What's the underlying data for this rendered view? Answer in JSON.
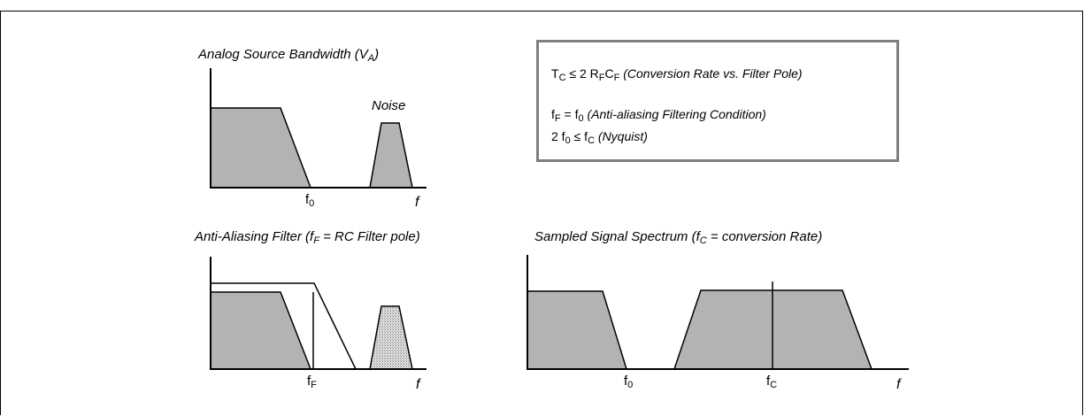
{
  "panel_top_left": {
    "title_prefix": "Analog Source Bandwidth (V",
    "title_sub": "A",
    "title_suffix": ")",
    "noise_label": "Noise",
    "f0_main": "f",
    "f0_sub": "0",
    "axis_f": "f"
  },
  "panel_bottom_left": {
    "title_prefix": "Anti-Aliasing Filter (f",
    "title_sub": "F",
    "title_suffix": " = RC Filter pole)",
    "fF_main": "f",
    "fF_sub": "F",
    "axis_f": "f"
  },
  "panel_bottom_right": {
    "title_prefix": "Sampled Signal Spectrum (f",
    "title_sub": "C",
    "title_suffix": " = conversion Rate)",
    "f0_main": "f",
    "f0_sub": "0",
    "fC_main": "f",
    "fC_sub": "C",
    "axis_f": "f"
  },
  "equations": {
    "eq1_a": "T",
    "eq1_a_sub": "C",
    "eq1_b": " ≤ 2 R",
    "eq1_b_sub": "F",
    "eq1_c": "C",
    "eq1_c_sub": "F",
    "eq1_note": " (Conversion Rate vs. Filter Pole)",
    "eq2_a": "f",
    "eq2_a_sub": "F",
    "eq2_b": " = f",
    "eq2_b_sub": "0",
    "eq2_note": " (Anti-aliasing Filtering Condition)",
    "eq3_a": "2 f",
    "eq3_a_sub": "0",
    "eq3_b": " ≤ f",
    "eq3_b_sub": "C",
    "eq3_note": " (Nyquist)"
  },
  "colors": {
    "fill": "#b3b3b3",
    "box_border": "#7f7f7f"
  }
}
